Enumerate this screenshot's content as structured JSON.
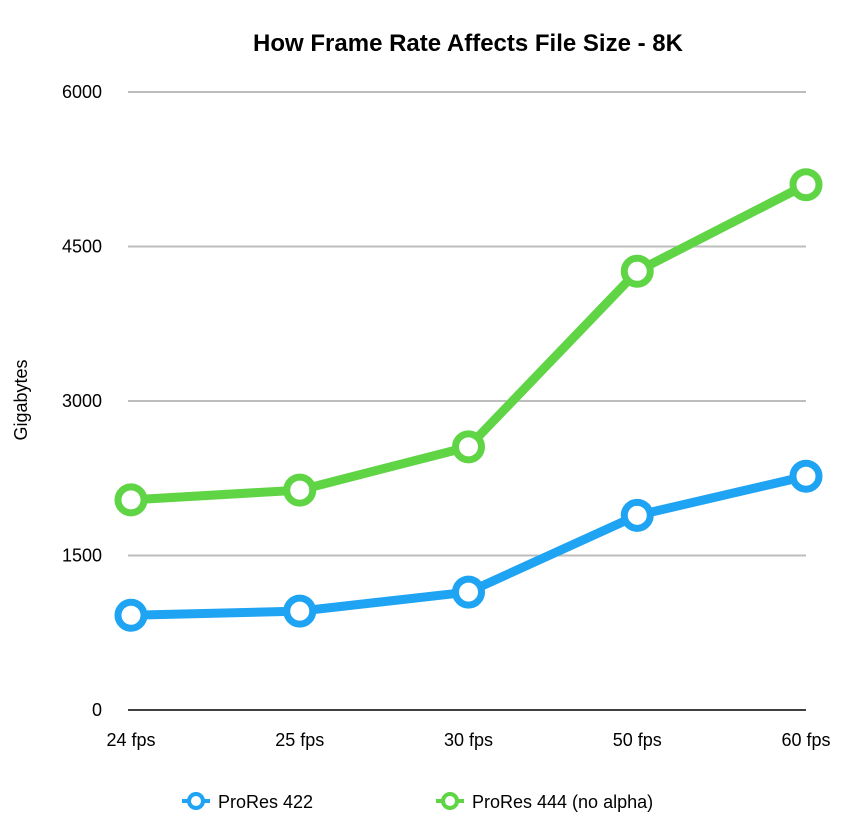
{
  "chart_data": {
    "type": "line",
    "title": "How Frame Rate Affects File Size - 8K",
    "xlabel": "",
    "ylabel": "Gigabytes",
    "categories": [
      "24 fps",
      "25 fps",
      "30 fps",
      "50 fps",
      "60 fps"
    ],
    "ylim": [
      0,
      6000
    ],
    "yticks": [
      "0",
      "1500",
      "3000",
      "4500",
      "6000"
    ],
    "ytick_values": [
      0,
      1500,
      3000,
      4500,
      6000
    ],
    "grid": true,
    "legend_position": "bottom",
    "series": [
      {
        "name": "ProRes 422",
        "color": "#1fa3f3",
        "values": [
          920,
          960,
          1145,
          1890,
          2270
        ]
      },
      {
        "name": "ProRes 444 (no alpha)",
        "color": "#5fd444",
        "values": [
          2040,
          2135,
          2555,
          4260,
          5100
        ]
      }
    ]
  }
}
